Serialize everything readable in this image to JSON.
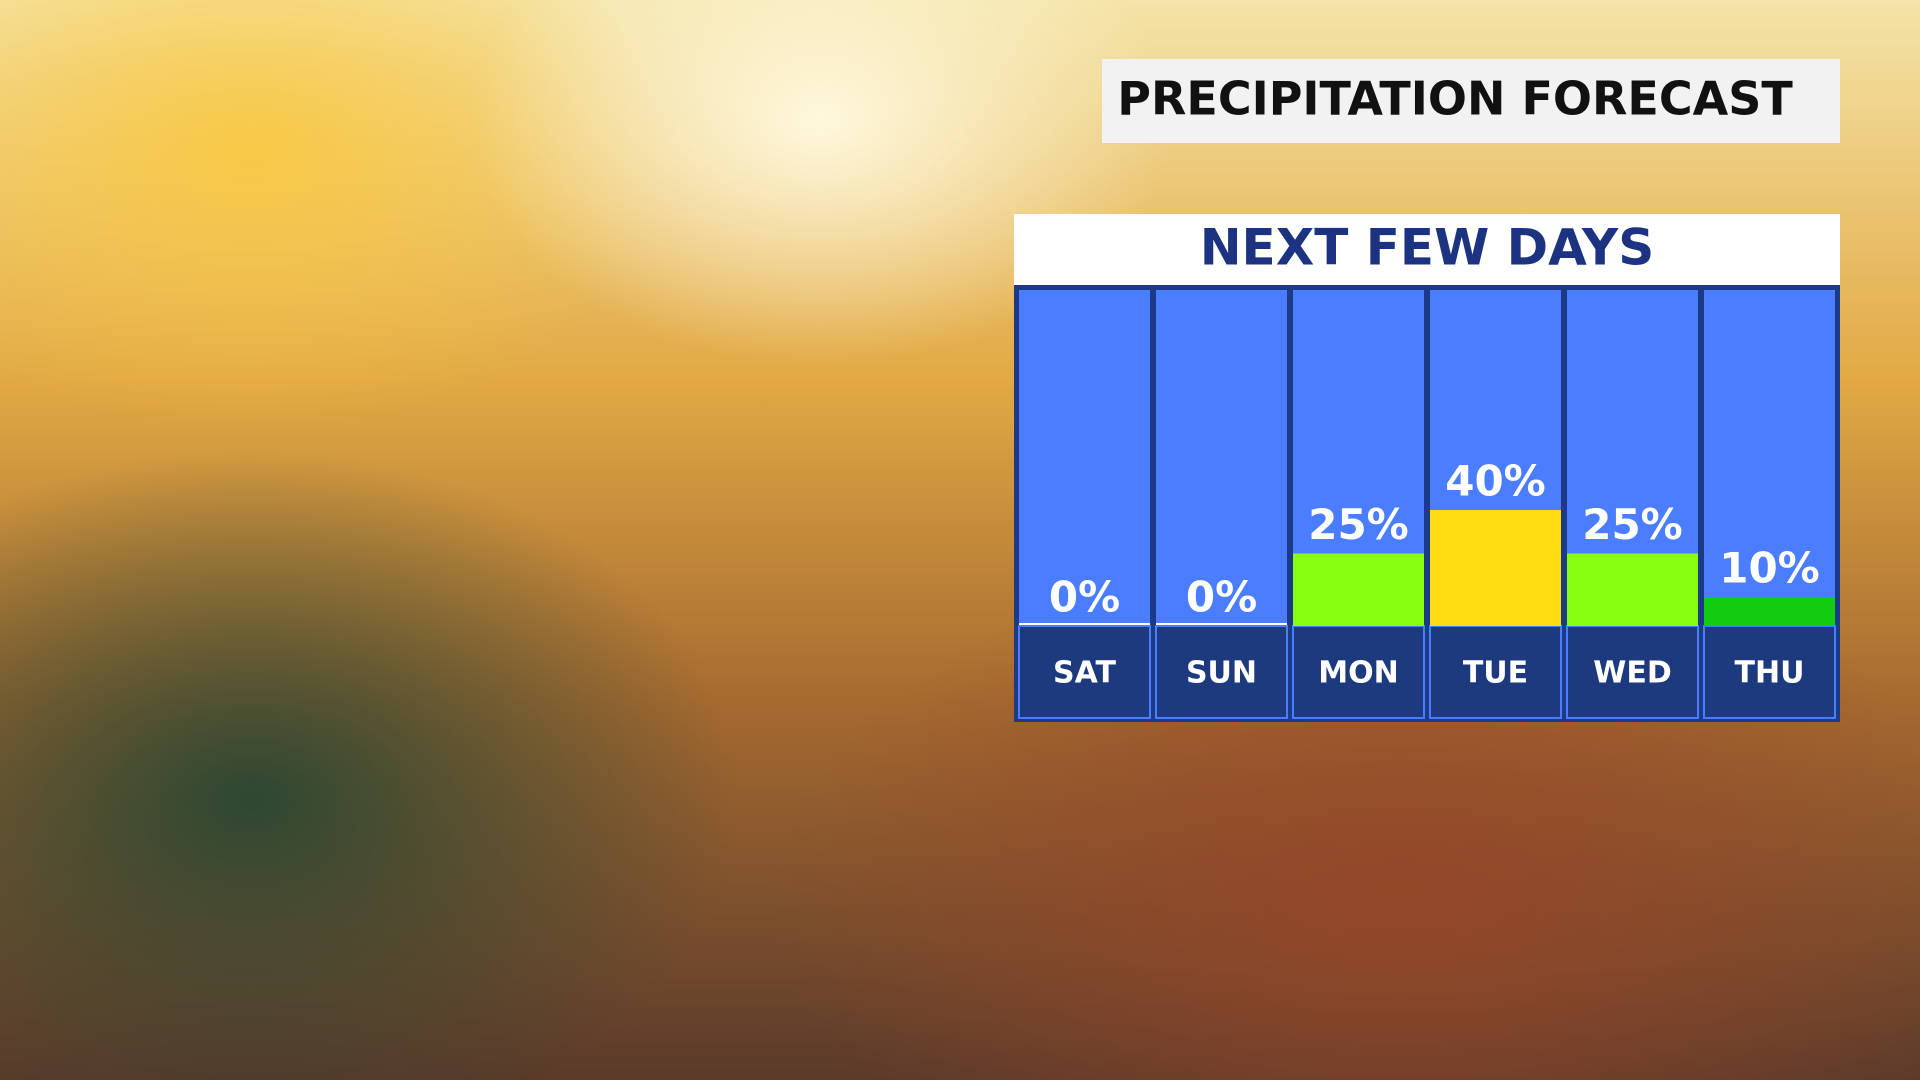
{
  "chart_data": {
    "type": "bar",
    "title": "PRECIPITATION FORECAST",
    "subtitle": "NEXT FEW DAYS",
    "categories": [
      "SAT",
      "SUN",
      "MON",
      "TUE",
      "WED",
      "THU"
    ],
    "values": [
      0,
      0,
      25,
      40,
      25,
      10
    ],
    "value_labels": [
      "0%",
      "0%",
      "25%",
      "40%",
      "25%",
      "10%"
    ],
    "colors": [
      "#ffffff",
      "#ffffff",
      "#88ff11",
      "#ffdd11",
      "#88ff11",
      "#11cc11"
    ]
  }
}
